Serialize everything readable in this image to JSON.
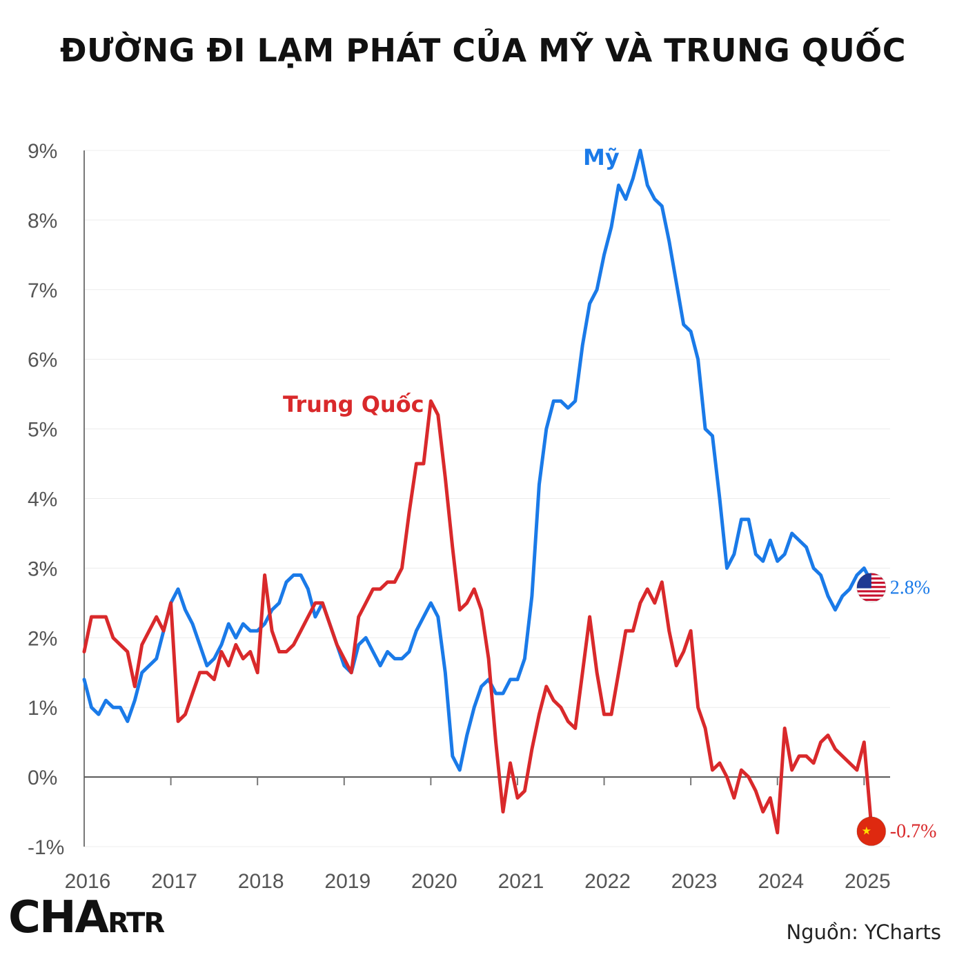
{
  "title": "ĐƯỜNG ĐI LẠM PHÁT CỦA MỸ VÀ TRUNG QUỐC",
  "source": "Nguồn: YCharts",
  "logo": {
    "big": "CHA",
    "small": "RTR"
  },
  "chart_data": {
    "type": "line",
    "title": "ĐƯỜNG ĐI LẠM PHÁT CỦA MỸ VÀ TRUNG QUỐC",
    "xlabel": "",
    "ylabel": "",
    "x_ticks": [
      "2016",
      "2017",
      "2018",
      "2019",
      "2020",
      "2021",
      "2022",
      "2023",
      "2024",
      "2025"
    ],
    "y_ticks": [
      "9%",
      "8%",
      "7%",
      "6%",
      "5%",
      "4%",
      "3%",
      "2%",
      "1%",
      "0%",
      "-1%"
    ],
    "xlim": [
      2016,
      2025.3
    ],
    "ylim": [
      -1,
      9
    ],
    "grid": true,
    "series": [
      {
        "name": "Mỹ",
        "color": "#1a7ae8",
        "end_label": "2.8%",
        "end_icon": "us-flag-icon",
        "values": [
          1.4,
          1.0,
          0.9,
          1.1,
          1.0,
          1.0,
          0.8,
          1.1,
          1.5,
          1.6,
          1.7,
          2.1,
          2.5,
          2.7,
          2.4,
          2.2,
          1.9,
          1.6,
          1.7,
          1.9,
          2.2,
          2.0,
          2.2,
          2.1,
          2.1,
          2.2,
          2.4,
          2.5,
          2.8,
          2.9,
          2.9,
          2.7,
          2.3,
          2.5,
          2.2,
          1.9,
          1.6,
          1.5,
          1.9,
          2.0,
          1.8,
          1.6,
          1.8,
          1.7,
          1.7,
          1.8,
          2.1,
          2.3,
          2.5,
          2.3,
          1.5,
          0.3,
          0.1,
          0.6,
          1.0,
          1.3,
          1.4,
          1.2,
          1.2,
          1.4,
          1.4,
          1.7,
          2.6,
          4.2,
          5.0,
          5.4,
          5.4,
          5.3,
          5.4,
          6.2,
          6.8,
          7.0,
          7.5,
          7.9,
          8.5,
          8.3,
          8.6,
          9.0,
          8.5,
          8.3,
          8.2,
          7.7,
          7.1,
          6.5,
          6.4,
          6.0,
          5.0,
          4.9,
          4.0,
          3.0,
          3.2,
          3.7,
          3.7,
          3.2,
          3.1,
          3.4,
          3.1,
          3.2,
          3.5,
          3.4,
          3.3,
          3.0,
          2.9,
          2.6,
          2.4,
          2.6,
          2.7,
          2.9,
          3.0,
          2.8
        ]
      },
      {
        "name": "Trung Quốc",
        "color": "#d9292b",
        "end_label": "-0.7%",
        "end_icon": "china-flag-icon",
        "values": [
          1.8,
          2.3,
          2.3,
          2.3,
          2.0,
          1.9,
          1.8,
          1.3,
          1.9,
          2.1,
          2.3,
          2.1,
          2.5,
          0.8,
          0.9,
          1.2,
          1.5,
          1.5,
          1.4,
          1.8,
          1.6,
          1.9,
          1.7,
          1.8,
          1.5,
          2.9,
          2.1,
          1.8,
          1.8,
          1.9,
          2.1,
          2.3,
          2.5,
          2.5,
          2.2,
          1.9,
          1.7,
          1.5,
          2.3,
          2.5,
          2.7,
          2.7,
          2.8,
          2.8,
          3.0,
          3.8,
          4.5,
          4.5,
          5.4,
          5.2,
          4.3,
          3.3,
          2.4,
          2.5,
          2.7,
          2.4,
          1.7,
          0.5,
          -0.5,
          0.2,
          -0.3,
          -0.2,
          0.4,
          0.9,
          1.3,
          1.1,
          1.0,
          0.8,
          0.7,
          1.5,
          2.3,
          1.5,
          0.9,
          0.9,
          1.5,
          2.1,
          2.1,
          2.5,
          2.7,
          2.5,
          2.8,
          2.1,
          1.6,
          1.8,
          2.1,
          1.0,
          0.7,
          0.1,
          0.2,
          0.0,
          -0.3,
          0.1,
          0.0,
          -0.2,
          -0.5,
          -0.3,
          -0.8,
          0.7,
          0.1,
          0.3,
          0.3,
          0.2,
          0.5,
          0.6,
          0.4,
          0.3,
          0.2,
          0.1,
          0.5,
          -0.7
        ]
      }
    ]
  }
}
